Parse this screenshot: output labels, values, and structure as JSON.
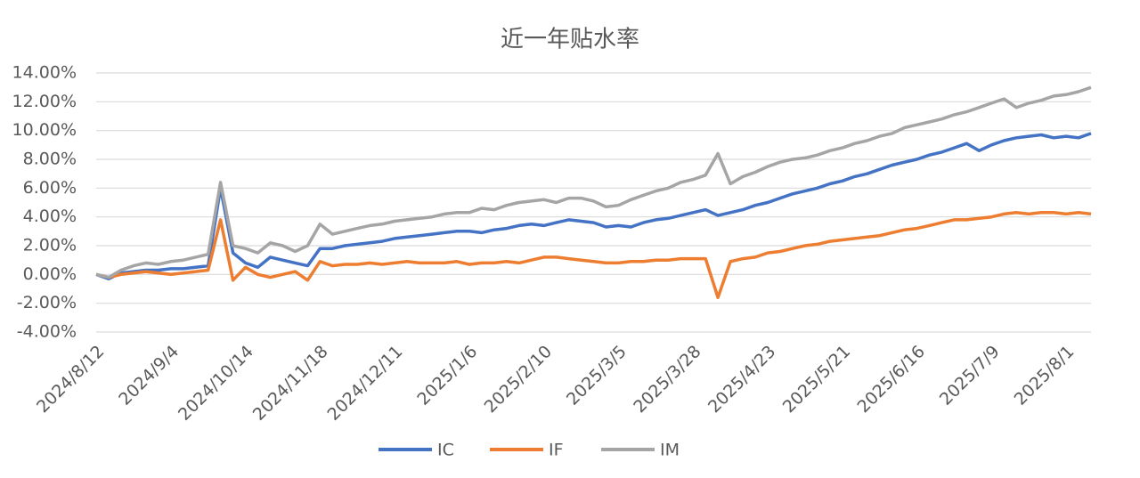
{
  "chart_data": {
    "type": "line",
    "title": "近一年贴水率",
    "categories": [
      "2024/8/12",
      null,
      null,
      null,
      null,
      null,
      "2024/9/4",
      null,
      null,
      null,
      null,
      null,
      "2024/10/14",
      null,
      null,
      null,
      null,
      null,
      "2024/11/18",
      null,
      null,
      null,
      null,
      null,
      "2024/12/11",
      null,
      null,
      null,
      null,
      null,
      "2025/1/6",
      null,
      null,
      null,
      null,
      null,
      "2025/2/10",
      null,
      null,
      null,
      null,
      null,
      "2025/3/5",
      null,
      null,
      null,
      null,
      null,
      "2025/3/28",
      null,
      null,
      null,
      null,
      null,
      "2025/4/23",
      null,
      null,
      null,
      null,
      null,
      "2025/5/21",
      null,
      null,
      null,
      null,
      null,
      "2025/6/16",
      null,
      null,
      null,
      null,
      null,
      "2025/7/9",
      null,
      null,
      null,
      null,
      null,
      "2025/8/1",
      null,
      null
    ],
    "series": [
      {
        "name": "IC",
        "color": "#4472c4",
        "values": [
          0,
          -0.3,
          0.1,
          0.2,
          0.3,
          0.3,
          0.4,
          0.4,
          0.5,
          0.6,
          6.0,
          1.5,
          0.8,
          0.5,
          1.2,
          1.0,
          0.8,
          0.6,
          1.8,
          1.8,
          2.0,
          2.1,
          2.2,
          2.3,
          2.5,
          2.6,
          2.7,
          2.8,
          2.9,
          3.0,
          3.0,
          2.9,
          3.1,
          3.2,
          3.4,
          3.5,
          3.4,
          3.6,
          3.8,
          3.7,
          3.6,
          3.3,
          3.4,
          3.3,
          3.6,
          3.8,
          3.9,
          4.1,
          4.3,
          4.5,
          4.1,
          4.3,
          4.5,
          4.8,
          5.0,
          5.3,
          5.6,
          5.8,
          6.0,
          6.3,
          6.5,
          6.8,
          7.0,
          7.3,
          7.6,
          7.8,
          8.0,
          8.3,
          8.5,
          8.8,
          9.1,
          8.6,
          9.0,
          9.3,
          9.5,
          9.6,
          9.7,
          9.5,
          9.6,
          9.5,
          9.8
        ]
      },
      {
        "name": "IF",
        "color": "#ed7d31",
        "values": [
          0,
          -0.2,
          0,
          0.1,
          0.2,
          0.1,
          0,
          0.1,
          0.2,
          0.3,
          3.8,
          -0.4,
          0.5,
          0,
          -0.2,
          0,
          0.2,
          -0.4,
          0.9,
          0.6,
          0.7,
          0.7,
          0.8,
          0.7,
          0.8,
          0.9,
          0.8,
          0.8,
          0.8,
          0.9,
          0.7,
          0.8,
          0.8,
          0.9,
          0.8,
          1.0,
          1.2,
          1.2,
          1.1,
          1.0,
          0.9,
          0.8,
          0.8,
          0.9,
          0.9,
          1.0,
          1.0,
          1.1,
          1.1,
          1.1,
          -1.6,
          0.9,
          1.1,
          1.2,
          1.5,
          1.6,
          1.8,
          2.0,
          2.1,
          2.3,
          2.4,
          2.5,
          2.6,
          2.7,
          2.9,
          3.1,
          3.2,
          3.4,
          3.6,
          3.8,
          3.8,
          3.9,
          4.0,
          4.2,
          4.3,
          4.2,
          4.3,
          4.3,
          4.2,
          4.3,
          4.2
        ]
      },
      {
        "name": "IM",
        "color": "#a5a5a5",
        "values": [
          0,
          -0.2,
          0.3,
          0.6,
          0.8,
          0.7,
          0.9,
          1.0,
          1.2,
          1.4,
          6.4,
          2.0,
          1.8,
          1.5,
          2.2,
          2.0,
          1.6,
          2.0,
          3.5,
          2.8,
          3.0,
          3.2,
          3.4,
          3.5,
          3.7,
          3.8,
          3.9,
          4.0,
          4.2,
          4.3,
          4.3,
          4.6,
          4.5,
          4.8,
          5.0,
          5.1,
          5.2,
          5.0,
          5.3,
          5.3,
          5.1,
          4.7,
          4.8,
          5.2,
          5.5,
          5.8,
          6.0,
          6.4,
          6.6,
          6.9,
          8.4,
          6.3,
          6.8,
          7.1,
          7.5,
          7.8,
          8.0,
          8.1,
          8.3,
          8.6,
          8.8,
          9.1,
          9.3,
          9.6,
          9.8,
          10.2,
          10.4,
          10.6,
          10.8,
          11.1,
          11.3,
          11.6,
          11.9,
          12.2,
          11.6,
          11.9,
          12.1,
          12.4,
          12.5,
          12.7,
          13.0
        ]
      }
    ],
    "ylim": [
      -4,
      14
    ],
    "yticks": [
      {
        "value": -4,
        "label": "-4.00%"
      },
      {
        "value": -2,
        "label": "-2.00%"
      },
      {
        "value": 0,
        "label": "0.00%"
      },
      {
        "value": 2,
        "label": "2.00%"
      },
      {
        "value": 4,
        "label": "4.00%"
      },
      {
        "value": 6,
        "label": "6.00%"
      },
      {
        "value": 8,
        "label": "8.00%"
      },
      {
        "value": 10,
        "label": "10.00%"
      },
      {
        "value": 12,
        "label": "12.00%"
      },
      {
        "value": 14,
        "label": "14.00%"
      }
    ],
    "grid": true,
    "legend": "bottom"
  }
}
